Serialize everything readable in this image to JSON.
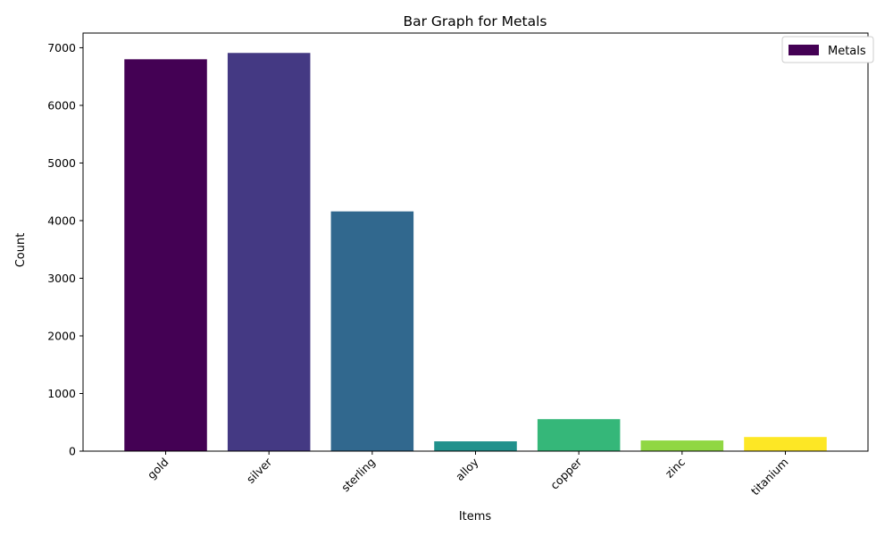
{
  "chart_data": {
    "type": "bar",
    "title": "Bar Graph for Metals",
    "xlabel": "Items",
    "ylabel": "Count",
    "categories": [
      "gold",
      "silver",
      "sterling",
      "alloy",
      "copper",
      "zinc",
      "titanium"
    ],
    "series": [
      {
        "name": "Metals",
        "values": [
          6800,
          6910,
          4160,
          170,
          555,
          185,
          245
        ]
      }
    ],
    "colors": [
      "#440154",
      "#443983",
      "#31688e",
      "#21918c",
      "#35b779",
      "#90d743",
      "#fde725"
    ],
    "ylim": [
      0,
      7255
    ],
    "yticks": [
      0,
      1000,
      2000,
      3000,
      4000,
      5000,
      6000,
      7000
    ],
    "grid": false,
    "legend": {
      "position": "top-right",
      "label": "Metals",
      "swatch_color": "#440154"
    }
  }
}
